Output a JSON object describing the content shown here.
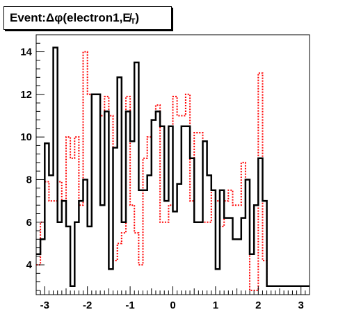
{
  "title": {
    "prefix": "Event: ",
    "delta": "Δ",
    "phi": "φ",
    "rest": "(electron1,",
    "met": "E̸",
    "met_sub": "T",
    "close": ")"
  },
  "chart_data": {
    "type": "step",
    "title": "Event: Δφ(electron1,E̸T)",
    "xlabel": "",
    "ylabel": "",
    "xlim": [
      -3.2,
      3.2
    ],
    "ylim": [
      2.6,
      14.8
    ],
    "x_ticks": [
      -3,
      -2,
      -1,
      0,
      1,
      2,
      3
    ],
    "y_ticks": [
      4,
      6,
      8,
      10,
      12,
      14
    ],
    "bin_edges_start": -3.2,
    "bin_width": 0.1,
    "series": [
      {
        "color": "#000000",
        "style": "solid",
        "values": [
          4.5,
          5.2,
          9.7,
          8.2,
          14.2,
          6.0,
          7.0,
          5.8,
          3.0,
          6.0,
          7.0,
          8.0,
          5.8,
          12.0,
          12.0,
          6.8,
          11.2,
          3.8,
          9.5,
          12.8,
          6.0,
          11.2,
          9.8,
          13.5,
          7.5,
          7.5,
          8.2,
          10.8,
          11.2,
          10.5,
          7.0,
          10.5,
          6.5,
          7.8,
          10.5,
          10.5,
          9.0,
          6.0,
          6.0,
          9.8,
          8.2,
          7.5,
          3.8,
          7.5,
          6.2,
          6.2,
          5.2,
          5.2,
          6.2,
          8.0,
          4.5,
          6.8,
          9.0,
          7.0,
          3.0,
          3.0,
          3.0,
          3.0,
          3.0,
          3.0,
          3.0,
          3.0,
          3.0,
          3.0
        ]
      },
      {
        "color": "#ff0000",
        "style": "dotted",
        "values": [
          4.0,
          6.0,
          7.9,
          7.0,
          7.0,
          7.9,
          7.0,
          10.0,
          9.0,
          10.0,
          6.8,
          14.0,
          12.0,
          12.0,
          12.0,
          11.0,
          11.9,
          11.0,
          4.2,
          5.0,
          5.5,
          11.9,
          6.8,
          5.5,
          4.0,
          9.0,
          10.0,
          10.8,
          11.5,
          6.0,
          6.0,
          6.8,
          11.9,
          11.0,
          11.0,
          12.0,
          7.0,
          10.2,
          10.2,
          6.0,
          6.0,
          7.5,
          7.0,
          5.8,
          7.0,
          7.5,
          6.8,
          6.8,
          8.8,
          8.0,
          2.8,
          2.8,
          13.0,
          4.2,
          3.0,
          3.0,
          3.0,
          3.0,
          3.0,
          3.0,
          3.0,
          3.0,
          3.0,
          3.0
        ]
      }
    ],
    "grid": false,
    "legend": "none"
  }
}
